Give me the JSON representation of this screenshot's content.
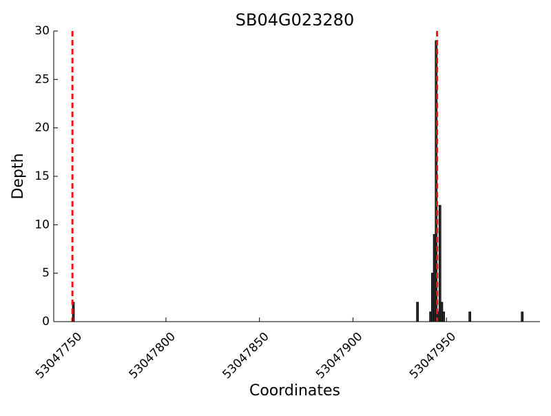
{
  "chart_data": {
    "type": "bar",
    "title": "SB04G023280",
    "x_label": "Coordinates",
    "y_label": "Depth",
    "x": [
      53047750,
      53047934,
      53047941,
      53047942,
      53047943,
      53047944,
      53047945,
      53047946,
      53047947,
      53047948,
      53047962,
      53047990
    ],
    "values": [
      2,
      2,
      1,
      5,
      9,
      29,
      1,
      12,
      2,
      1,
      1,
      1
    ],
    "color": "#333333",
    "xlim": [
      53047740,
      53048000
    ],
    "xticks": [
      53047750,
      53047800,
      53047850,
      53047900,
      53047950
    ],
    "ylim": [
      0,
      30
    ],
    "yticks": [
      0,
      5,
      10,
      15,
      20,
      25,
      30
    ],
    "vlines": [
      53047750,
      53047945
    ],
    "vline_color": "#ee1111",
    "grid": false
  }
}
